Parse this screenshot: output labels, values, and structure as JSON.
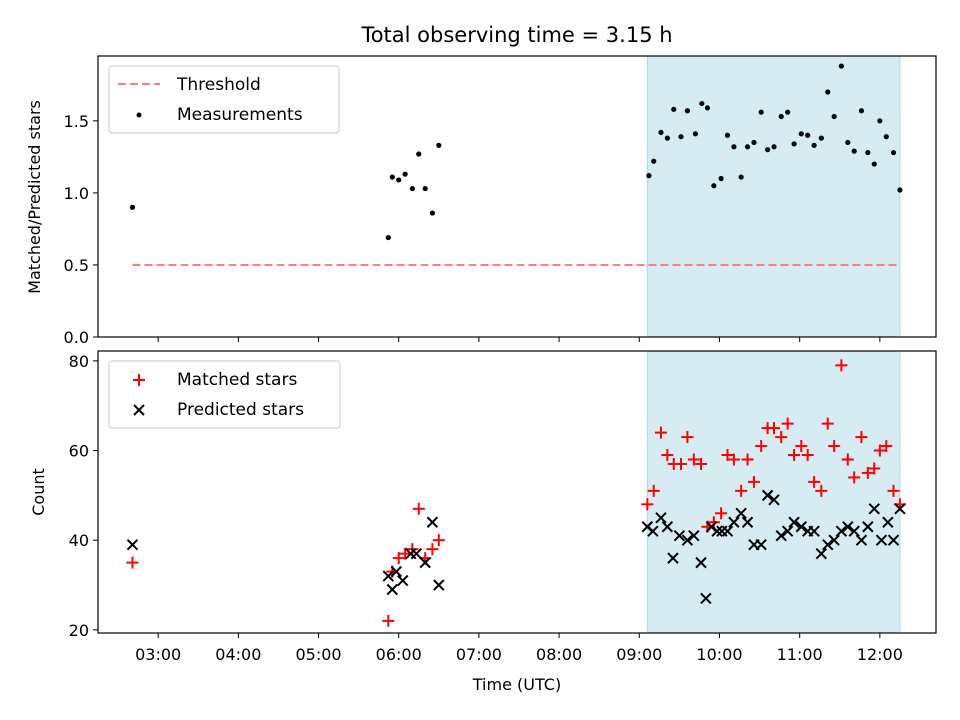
{
  "chart_data": [
    {
      "type": "scatter",
      "title": "Total observing time = 3.15 h",
      "xlabel": "",
      "ylabel": "Matched/Predicted stars",
      "ylim": [
        0,
        1.95
      ],
      "yticks": [
        "0.0",
        "0.5",
        "1.0",
        "1.5"
      ],
      "ytick_values": [
        0,
        0.5,
        1.0,
        1.5
      ],
      "legend_position": "upper-left",
      "shaded_span": [
        9.1,
        12.25
      ],
      "shade_color": "#add8e6",
      "series": [
        {
          "name": "Threshold",
          "style": "dashed-line",
          "color": "#ff7f7f",
          "x": [
            2.68,
            12.22
          ],
          "y": [
            0.5,
            0.5
          ]
        },
        {
          "name": "Measurements",
          "style": "dot",
          "color": "#000000",
          "x": [
            2.68,
            5.87,
            5.92,
            6.0,
            6.08,
            6.17,
            6.25,
            6.33,
            6.42,
            6.5,
            9.12,
            9.18,
            9.27,
            9.35,
            9.43,
            9.52,
            9.6,
            9.7,
            9.78,
            9.85,
            9.93,
            10.02,
            10.1,
            10.18,
            10.27,
            10.35,
            10.43,
            10.52,
            10.6,
            10.68,
            10.77,
            10.85,
            10.93,
            11.02,
            11.1,
            11.18,
            11.27,
            11.35,
            11.43,
            11.52,
            11.6,
            11.68,
            11.77,
            11.85,
            11.93,
            12.0,
            12.08,
            12.17,
            12.25
          ],
          "y": [
            0.9,
            0.69,
            1.11,
            1.09,
            1.13,
            1.03,
            1.27,
            1.03,
            0.86,
            1.33,
            1.12,
            1.22,
            1.42,
            1.38,
            1.58,
            1.39,
            1.57,
            1.41,
            1.62,
            1.59,
            1.05,
            1.1,
            1.4,
            1.32,
            1.11,
            1.32,
            1.35,
            1.56,
            1.3,
            1.32,
            1.53,
            1.56,
            1.34,
            1.41,
            1.4,
            1.33,
            1.38,
            1.7,
            1.53,
            1.88,
            1.35,
            1.29,
            1.57,
            1.28,
            1.2,
            1.5,
            1.39,
            1.28,
            1.02
          ]
        }
      ]
    },
    {
      "type": "scatter",
      "title": "",
      "xlabel": "Time (UTC)",
      "ylabel": "Count",
      "ylim": [
        19.3,
        82.2
      ],
      "yticks": [
        "20",
        "40",
        "60",
        "80"
      ],
      "ytick_values": [
        20,
        40,
        60,
        80
      ],
      "xlim": [
        2.25,
        12.7
      ],
      "xticks": [
        "03:00",
        "04:00",
        "05:00",
        "06:00",
        "07:00",
        "08:00",
        "09:00",
        "10:00",
        "11:00",
        "12:00"
      ],
      "xtick_values": [
        3,
        4,
        5,
        6,
        7,
        8,
        9,
        10,
        11,
        12
      ],
      "legend_position": "upper-left",
      "shaded_span": [
        9.1,
        12.25
      ],
      "series": [
        {
          "name": "Matched stars",
          "marker": "plus",
          "color": "#ff0000",
          "x": [
            2.68,
            5.87,
            5.92,
            6.0,
            6.08,
            6.17,
            6.25,
            6.33,
            6.42,
            6.5,
            9.1,
            9.18,
            9.27,
            9.35,
            9.43,
            9.52,
            9.6,
            9.68,
            9.77,
            9.85,
            9.93,
            10.02,
            10.1,
            10.18,
            10.27,
            10.35,
            10.43,
            10.52,
            10.6,
            10.68,
            10.77,
            10.85,
            10.93,
            11.02,
            11.1,
            11.18,
            11.27,
            11.35,
            11.43,
            11.52,
            11.6,
            11.68,
            11.77,
            11.85,
            11.93,
            12.0,
            12.08,
            12.17,
            12.25
          ],
          "y": [
            35,
            22,
            33,
            36,
            37,
            38,
            47,
            36,
            38,
            40,
            48,
            51,
            64,
            59,
            57,
            57,
            63,
            58,
            57,
            43,
            44,
            46,
            59,
            58,
            51,
            58,
            53,
            61,
            65,
            65,
            63,
            66,
            59,
            61,
            59,
            53,
            51,
            66,
            61,
            79,
            58,
            54,
            63,
            55,
            56,
            60,
            61,
            51,
            48
          ]
        },
        {
          "name": "Predicted stars",
          "marker": "x",
          "color": "#000000",
          "x": [
            2.68,
            5.87,
            5.92,
            5.97,
            6.05,
            6.15,
            6.22,
            6.33,
            6.42,
            6.5,
            9.1,
            9.17,
            9.27,
            9.35,
            9.42,
            9.5,
            9.6,
            9.68,
            9.77,
            9.83,
            9.9,
            9.97,
            10.03,
            10.1,
            10.18,
            10.27,
            10.35,
            10.43,
            10.52,
            10.6,
            10.68,
            10.77,
            10.85,
            10.93,
            11.02,
            11.1,
            11.18,
            11.27,
            11.35,
            11.43,
            11.52,
            11.6,
            11.68,
            11.77,
            11.85,
            11.93,
            12.02,
            12.1,
            12.17,
            12.25
          ],
          "y": [
            39,
            32,
            29,
            33,
            31,
            37,
            37,
            35,
            44,
            30,
            43,
            42,
            45,
            43,
            36,
            41,
            40,
            41,
            35,
            27,
            43,
            42,
            42,
            42,
            44,
            46,
            44,
            39,
            39,
            50,
            49,
            41,
            42,
            44,
            43,
            42,
            42,
            37,
            39,
            40,
            42,
            43,
            42,
            40,
            43,
            47,
            40,
            44,
            40,
            47
          ]
        }
      ]
    }
  ]
}
